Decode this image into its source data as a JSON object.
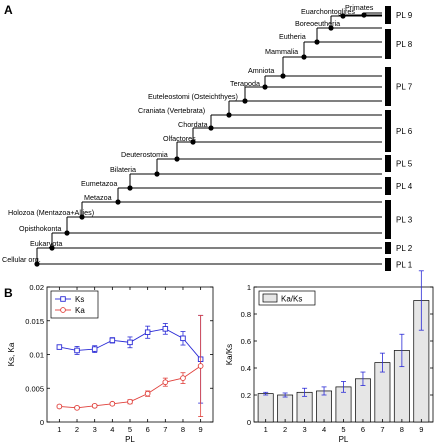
{
  "panel_a": {
    "label": "A",
    "nodes": [
      {
        "name": "Primates",
        "pl": 9
      },
      {
        "name": "Euarchontoglires",
        "pl": 9
      },
      {
        "name": "Boreoeutheria",
        "pl": 8
      },
      {
        "name": "Eutheria",
        "pl": 8
      },
      {
        "name": "Mammalia",
        "pl": 8
      },
      {
        "name": "Amniota",
        "pl": 7
      },
      {
        "name": "Terapoda",
        "pl": 7
      },
      {
        "name": "Euteleostomi (Osteichthyes)",
        "pl": 7
      },
      {
        "name": "Craniata (Vertebrata)",
        "pl": 6
      },
      {
        "name": "Chordata",
        "pl": 6
      },
      {
        "name": "Olfactores",
        "pl": 6
      },
      {
        "name": "Deuterostomia",
        "pl": 5
      },
      {
        "name": "Bilateria",
        "pl": 5
      },
      {
        "name": "Eumetazoa",
        "pl": 4
      },
      {
        "name": "Metazoa",
        "pl": 3
      },
      {
        "name": "Holozoa (Mentazoa+Allies)",
        "pl": 3
      },
      {
        "name": "Opisthokonta",
        "pl": 3
      },
      {
        "name": "Eukaryota",
        "pl": 2
      },
      {
        "name": "Cellular org.",
        "pl": 1
      }
    ],
    "pl_labels": [
      "PL 9",
      "PL 8",
      "PL 7",
      "PL 6",
      "PL 5",
      "PL 4",
      "PL 3",
      "PL 2",
      "PL 1"
    ]
  },
  "chart_data": [
    {
      "type": "line",
      "panel_label": "B",
      "x": [
        1,
        2,
        3,
        4,
        5,
        6,
        7,
        8,
        9
      ],
      "xlabel": "PL",
      "ylabel": "Ks, Ka",
      "ylim": [
        0,
        0.02
      ],
      "yticks": [
        "0",
        "0.005",
        "0.01",
        "0.015",
        "0.02"
      ],
      "xticks": [
        "1",
        "2",
        "3",
        "4",
        "5",
        "6",
        "7",
        "8",
        "9"
      ],
      "legend_position": "top-left",
      "series": [
        {
          "name": "Ks",
          "color": "#2b2bd6",
          "values": [
            0.0111,
            0.0106,
            0.0108,
            0.0121,
            0.0118,
            0.0133,
            0.0138,
            0.0124,
            0.0093
          ],
          "errors": [
            0.0003,
            0.0006,
            0.0005,
            0.0004,
            0.0008,
            0.0009,
            0.0008,
            0.001,
            0.0065
          ]
        },
        {
          "name": "Ka",
          "color": "#e0403b",
          "values": [
            0.0023,
            0.0021,
            0.0024,
            0.0027,
            0.003,
            0.0042,
            0.0059,
            0.0065,
            0.0083
          ],
          "errors": [
            0.0002,
            0.0002,
            0.0002,
            0.0002,
            0.0003,
            0.0004,
            0.0006,
            0.0008,
            0.0075
          ]
        }
      ]
    },
    {
      "type": "bar",
      "x": [
        1,
        2,
        3,
        4,
        5,
        6,
        7,
        8,
        9
      ],
      "categories": [
        "1",
        "2",
        "3",
        "4",
        "5",
        "6",
        "7",
        "8",
        "9"
      ],
      "xlabel": "PL",
      "ylabel": "Ka/Ks",
      "ylim": [
        0,
        1
      ],
      "yticks": [
        "0",
        "0.2",
        "0.4",
        "0.6",
        "0.8",
        "1"
      ],
      "legend_position": "top-left",
      "series": [
        {
          "name": "Ka/Ks",
          "color": "#e6e6e6",
          "values": [
            0.21,
            0.2,
            0.22,
            0.23,
            0.26,
            0.32,
            0.44,
            0.53,
            0.9
          ],
          "errors": [
            0.01,
            0.015,
            0.03,
            0.03,
            0.04,
            0.05,
            0.07,
            0.12,
            0.22
          ]
        }
      ]
    }
  ]
}
